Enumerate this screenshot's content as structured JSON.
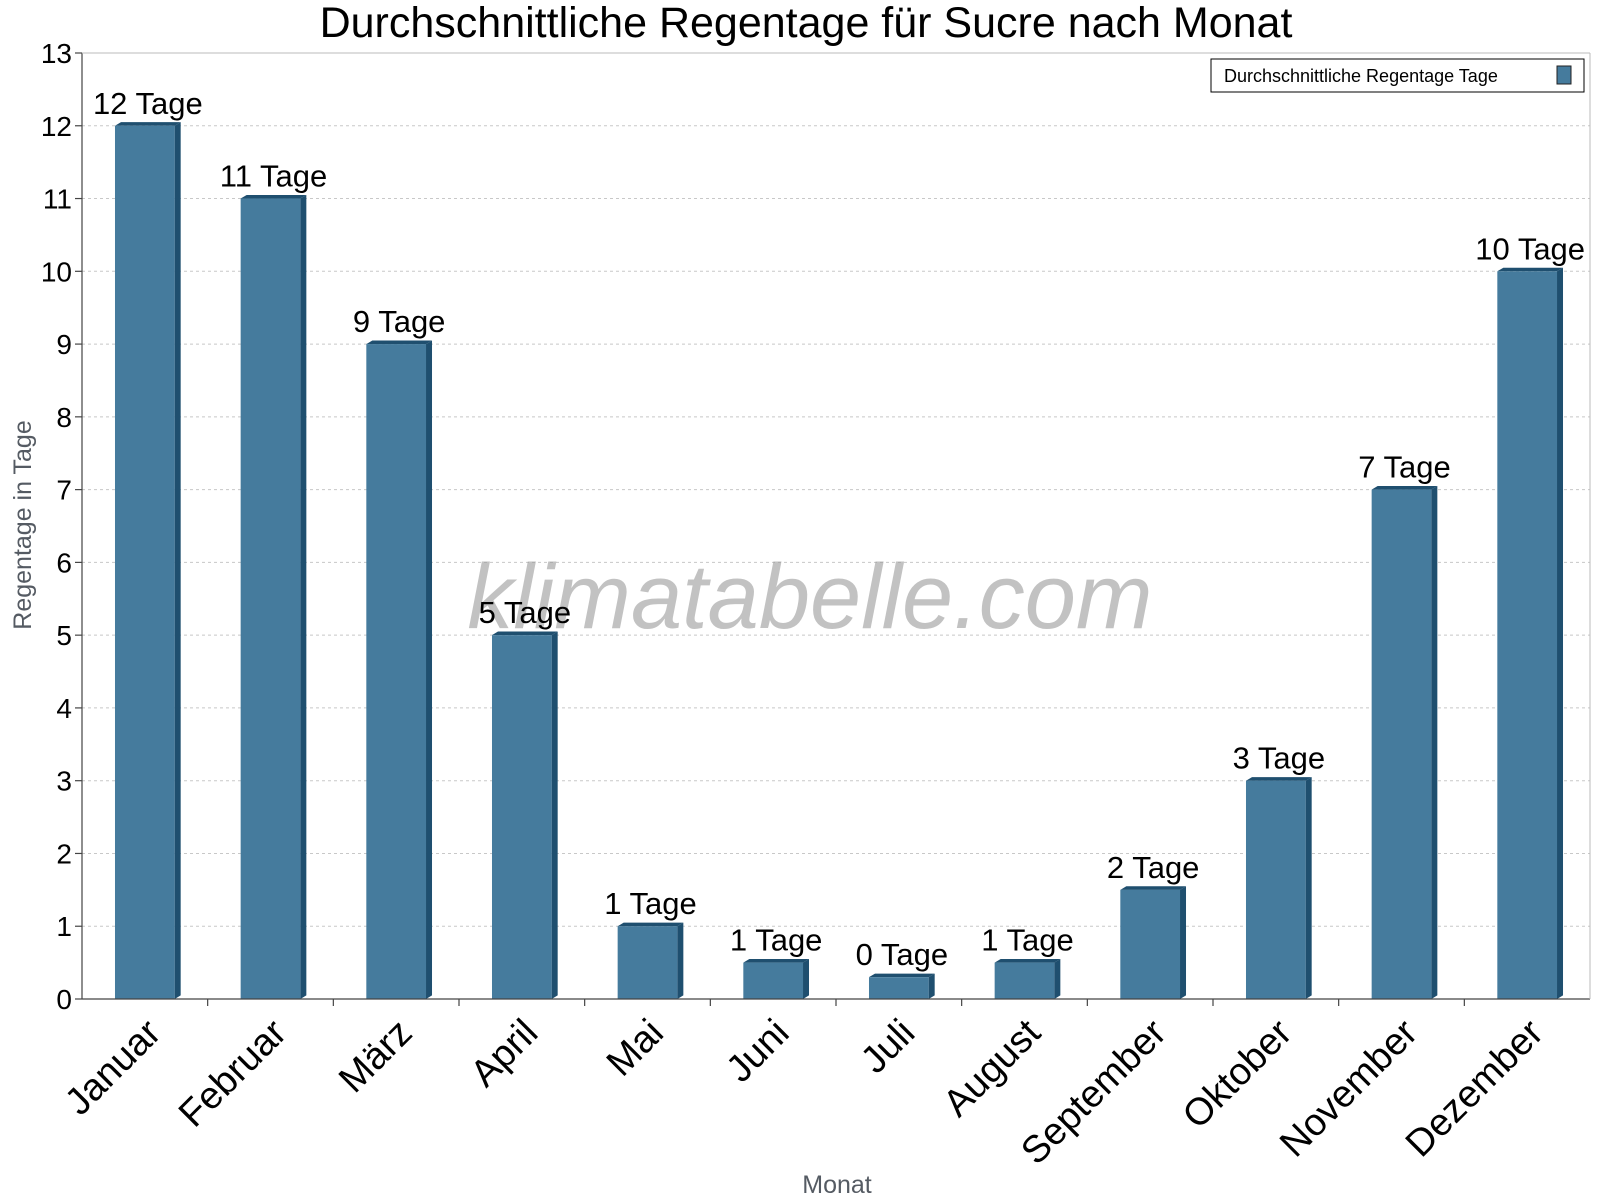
{
  "chart_data": {
    "type": "bar",
    "title": "Durchschnittliche Regentage für Sucre nach Monat",
    "xlabel": "Monat",
    "ylabel": "Regentage in Tage",
    "ylim": [
      0,
      13
    ],
    "yticks": [
      0,
      1,
      2,
      3,
      4,
      5,
      6,
      7,
      8,
      9,
      10,
      11,
      12,
      13
    ],
    "grid": true,
    "legend_position": "top-right",
    "categories": [
      "Januar",
      "Februar",
      "März",
      "April",
      "Mai",
      "Juni",
      "Juli",
      "August",
      "September",
      "Oktober",
      "November",
      "Dezember"
    ],
    "series": [
      {
        "name": "Durchschnittliche Regentage Tage",
        "values": [
          12,
          11,
          9,
          5,
          1,
          0.5,
          0.3,
          0.5,
          1.5,
          3,
          7,
          10
        ],
        "labels": [
          "12 Tage",
          "11 Tage",
          "9 Tage",
          "5 Tage",
          "1 Tage",
          "1 Tage",
          "0 Tage",
          "1 Tage",
          "2 Tage",
          "3 Tage",
          "7 Tage",
          "10 Tage"
        ],
        "color": "#457b9d",
        "dark_color": "#1f4f6f"
      }
    ],
    "watermark": "klimatabelle.com"
  }
}
